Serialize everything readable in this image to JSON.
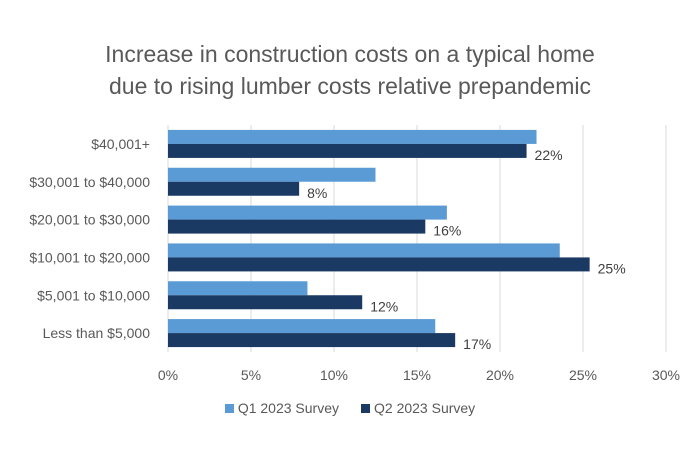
{
  "chart_data": {
    "type": "bar",
    "orientation": "horizontal",
    "title": "Increase in construction costs on a typical home due to rising lumber costs relative prepandemic",
    "title_lines": [
      "Increase in construction costs on a typical home",
      "due to rising lumber costs relative prepandemic"
    ],
    "categories": [
      "$40,001+",
      "$30,001 to $40,000",
      "$20,001 to $30,000",
      "$10,001 to $20,000",
      "$5,001 to $10,000",
      "Less than $5,000"
    ],
    "series": [
      {
        "name": "Q1 2023 Survey",
        "color": "#5b9bd5",
        "values": [
          22.2,
          12.5,
          16.8,
          23.6,
          8.4,
          16.1
        ],
        "labels": null
      },
      {
        "name": "Q2 2023 Survey",
        "color": "#1a3a64",
        "values": [
          21.6,
          7.9,
          15.5,
          25.4,
          11.7,
          17.3
        ],
        "labels": [
          "22%",
          "8%",
          "16%",
          "25%",
          "12%",
          "17%"
        ]
      }
    ],
    "xlabel": "",
    "ylabel": "",
    "xlim": [
      0,
      30
    ],
    "x_ticks": [
      0,
      5,
      10,
      15,
      20,
      25,
      30
    ],
    "x_tick_labels": [
      "0%",
      "5%",
      "10%",
      "15%",
      "20%",
      "25%",
      "30%"
    ],
    "grid": true,
    "legend_position": "bottom"
  }
}
